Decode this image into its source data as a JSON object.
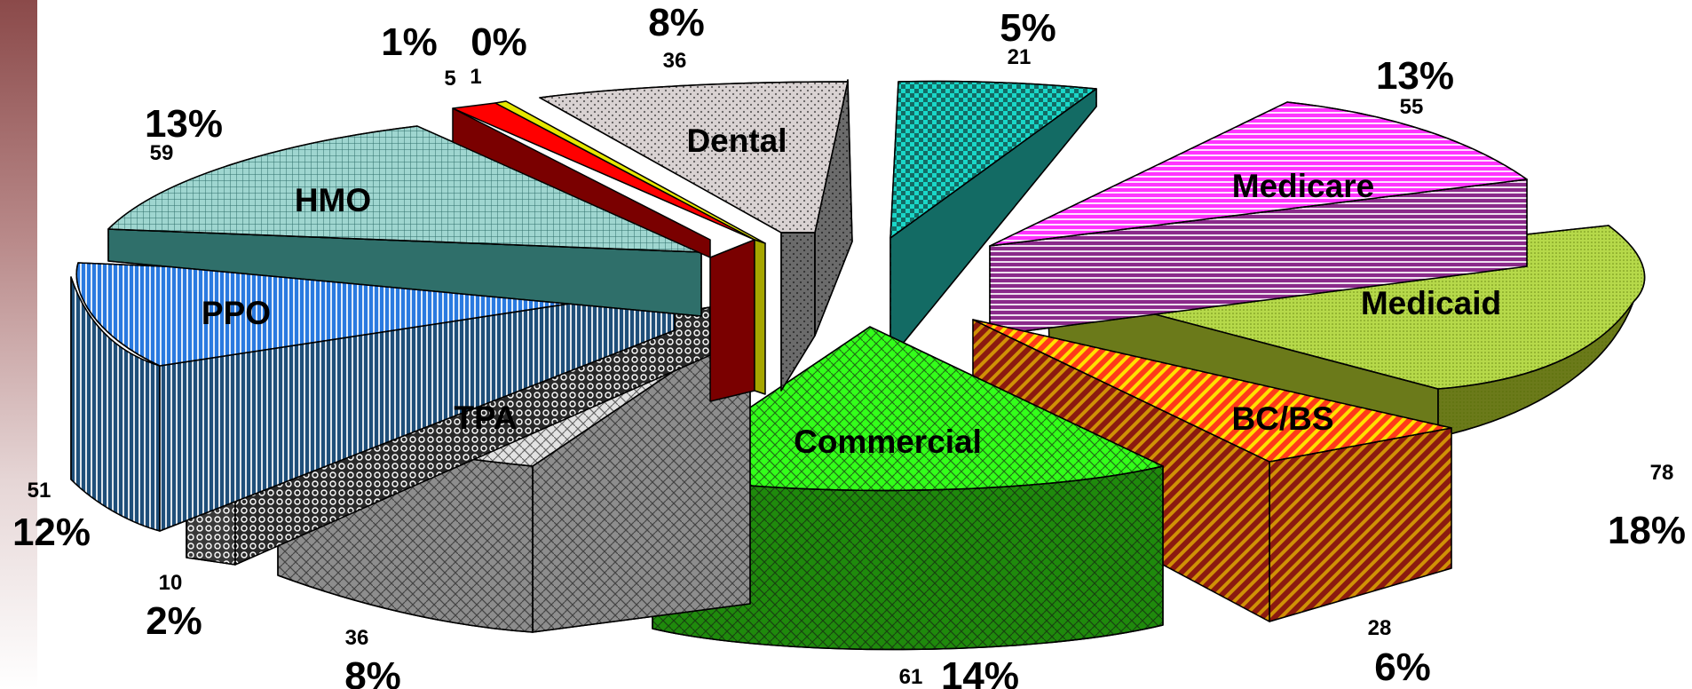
{
  "chart_data": {
    "type": "pie",
    "style": "3d-exploded",
    "slices": [
      {
        "label": "Medicaid",
        "value": 78,
        "percent": "18%",
        "color": "#b6d94a"
      },
      {
        "label": "BC/BS",
        "value": 28,
        "percent": "6%",
        "color": "#ff3a1a"
      },
      {
        "label": "Commercial",
        "value": 61,
        "percent": "14%",
        "color": "#33ff1a"
      },
      {
        "label": "TPA",
        "value": 36,
        "percent": "8%",
        "color": "#e2e2e2"
      },
      {
        "label": "",
        "value": 10,
        "percent": "2%",
        "color": "#3a3a3a"
      },
      {
        "label": "PPO",
        "value": 51,
        "percent": "12%",
        "color": "#2a7ae0"
      },
      {
        "label": "HMO",
        "value": 59,
        "percent": "13%",
        "color": "#9fd6d0"
      },
      {
        "label": "",
        "value": 5,
        "percent": "1%",
        "color": "#ff0000"
      },
      {
        "label": "",
        "value": 1,
        "percent": "0%",
        "color": "#e6e600"
      },
      {
        "label": "Dental",
        "value": 36,
        "percent": "8%",
        "color": "#d9d2d2"
      },
      {
        "label": "",
        "value": 21,
        "percent": "5%",
        "color": "#1ad7c8"
      },
      {
        "label": "Medicare",
        "value": 55,
        "percent": "13%",
        "color": "#ff33ff"
      }
    ]
  }
}
